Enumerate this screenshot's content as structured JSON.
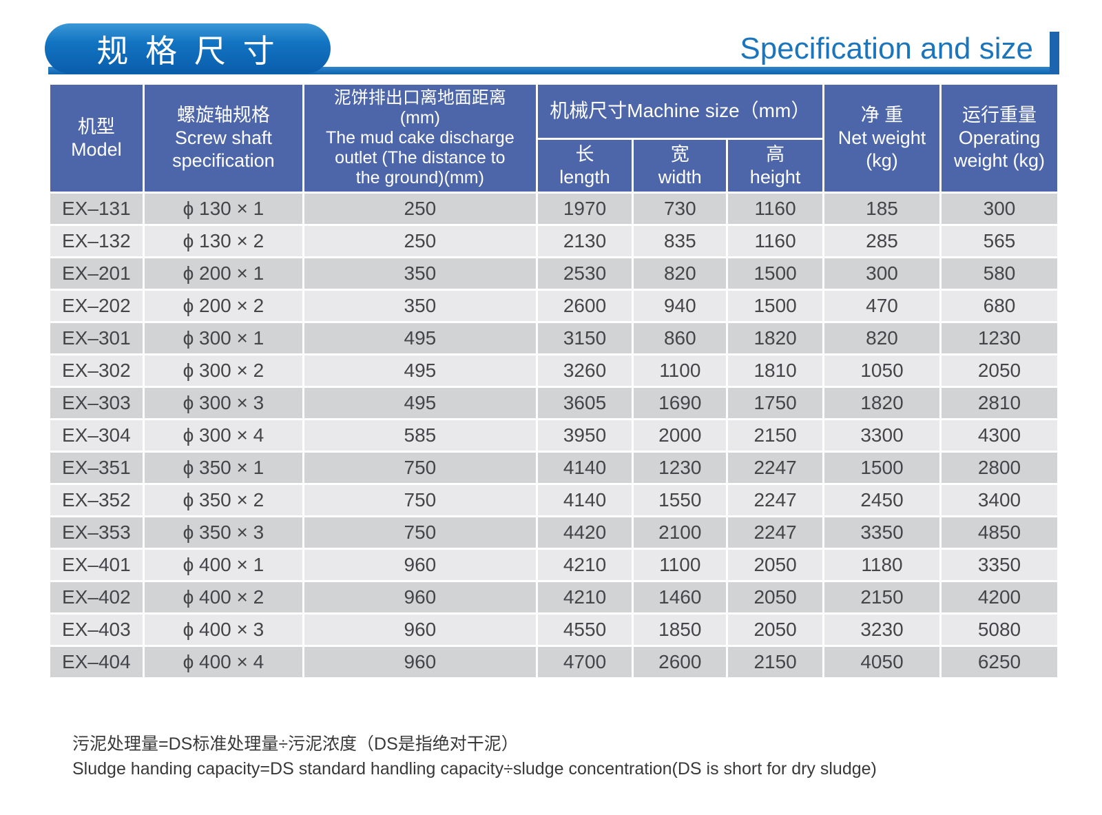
{
  "header": {
    "title_zh": "规 格 尺 寸",
    "title_en": "Specification and size"
  },
  "colors": {
    "badge_blue_top": "#3a97d6",
    "badge_blue_bottom": "#0a5dab",
    "rule_blue": "#1467b2",
    "accent_bar_blue": "#1d64ae",
    "title_en_blue": "#1b75bc",
    "table_header_blue": "#4d66a9",
    "row_dark_gray": "#d2d3d5",
    "row_light_gray": "#e9e9eb",
    "cell_text": "#454549"
  },
  "table": {
    "column_keys": [
      "model",
      "screw_shaft_spec",
      "outlet_distance",
      "length",
      "width",
      "height",
      "net_weight",
      "operating_weight"
    ],
    "header": {
      "model": {
        "zh": "机型",
        "en": "Model"
      },
      "screw": {
        "zh": "螺旋轴规格",
        "en1": "Screw shaft",
        "en2": "specification"
      },
      "outlet": {
        "zh": "泥饼排出口离地面距离",
        "line2": "(mm)",
        "line3": "The mud cake discharge",
        "line4": "outlet (The distance to",
        "line5": "the ground)(mm)"
      },
      "machine_size_group": "机械尺寸Machine size（mm）",
      "length": {
        "zh": "长",
        "en": "length"
      },
      "width": {
        "zh": "宽",
        "en": "width"
      },
      "height": {
        "zh": "高",
        "en": "height"
      },
      "net_weight": {
        "zh": "净 重",
        "en1": "Net weight",
        "en2": "(kg)"
      },
      "operating_weight": {
        "zh": "运行重量",
        "en1": "Operating",
        "en2": "weight (kg)"
      }
    },
    "rows": [
      [
        "EX–131",
        "ϕ 130 × 1",
        "250",
        "1970",
        "730",
        "1160",
        "185",
        "300"
      ],
      [
        "EX–132",
        "ϕ 130 × 2",
        "250",
        "2130",
        "835",
        "1160",
        "285",
        "565"
      ],
      [
        "EX–201",
        "ϕ 200 × 1",
        "350",
        "2530",
        "820",
        "1500",
        "300",
        "580"
      ],
      [
        "EX–202",
        "ϕ 200 × 2",
        "350",
        "2600",
        "940",
        "1500",
        "470",
        "680"
      ],
      [
        "EX–301",
        "ϕ 300 × 1",
        "495",
        "3150",
        "860",
        "1820",
        "820",
        "1230"
      ],
      [
        "EX–302",
        "ϕ 300 × 2",
        "495",
        "3260",
        "1100",
        "1810",
        "1050",
        "2050"
      ],
      [
        "EX–303",
        "ϕ 300 × 3",
        "495",
        "3605",
        "1690",
        "1750",
        "1820",
        "2810"
      ],
      [
        "EX–304",
        "ϕ 300 × 4",
        "585",
        "3950",
        "2000",
        "2150",
        "3300",
        "4300"
      ],
      [
        "EX–351",
        "ϕ 350 × 1",
        "750",
        "4140",
        "1230",
        "2247",
        "1500",
        "2800"
      ],
      [
        "EX–352",
        "ϕ 350 × 2",
        "750",
        "4140",
        "1550",
        "2247",
        "2450",
        "3400"
      ],
      [
        "EX–353",
        "ϕ 350 × 3",
        "750",
        "4420",
        "2100",
        "2247",
        "3350",
        "4850"
      ],
      [
        "EX–401",
        "ϕ 400 × 1",
        "960",
        "4210",
        "1100",
        "2050",
        "1180",
        "3350"
      ],
      [
        "EX–402",
        "ϕ 400 × 2",
        "960",
        "4210",
        "1460",
        "2050",
        "2150",
        "4200"
      ],
      [
        "EX–403",
        "ϕ 400 × 3",
        "960",
        "4550",
        "1850",
        "2050",
        "3230",
        "5080"
      ],
      [
        "EX–404",
        "ϕ 400 × 4",
        "960",
        "4700",
        "2600",
        "2150",
        "4050",
        "6250"
      ]
    ]
  },
  "footnote": {
    "zh": "污泥处理量=DS标准处理量÷污泥浓度（DS是指绝对干泥）",
    "en": "Sludge handing capacity=DS standard handling capacity÷sludge concentration(DS is short for dry sludge)"
  }
}
